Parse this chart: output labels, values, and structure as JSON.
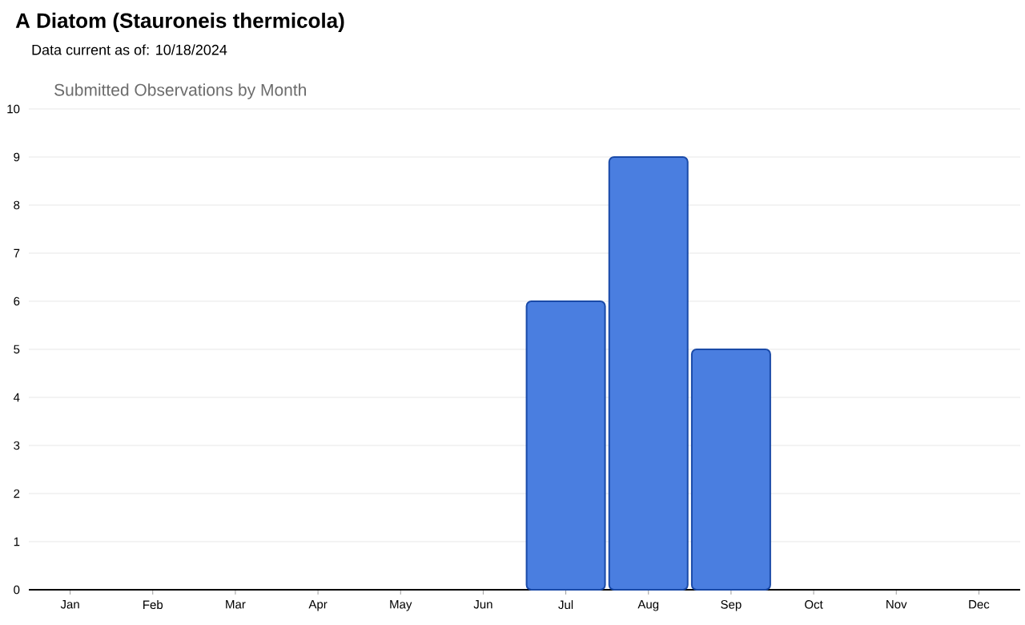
{
  "chart_data": {
    "type": "bar",
    "title": "A Diatom   (Stauroneis thermicola)",
    "subtitle": "Data current as of: 10/18/2024",
    "annotations": [
      "Submitted Observations by Month"
    ],
    "categories": [
      "Jan",
      "Feb",
      "Mar",
      "Apr",
      "May",
      "Jun",
      "Jul",
      "Aug",
      "Sep",
      "Oct",
      "Nov",
      "Dec"
    ],
    "values": [
      0,
      0,
      0,
      0,
      0,
      0,
      6,
      9,
      5,
      0,
      0,
      0
    ],
    "color": "#4a7ee0",
    "ylim": [
      0,
      10
    ],
    "yticks": [
      0,
      1,
      2,
      3,
      4,
      5,
      6,
      7,
      8,
      9,
      10
    ],
    "grid": "y"
  }
}
